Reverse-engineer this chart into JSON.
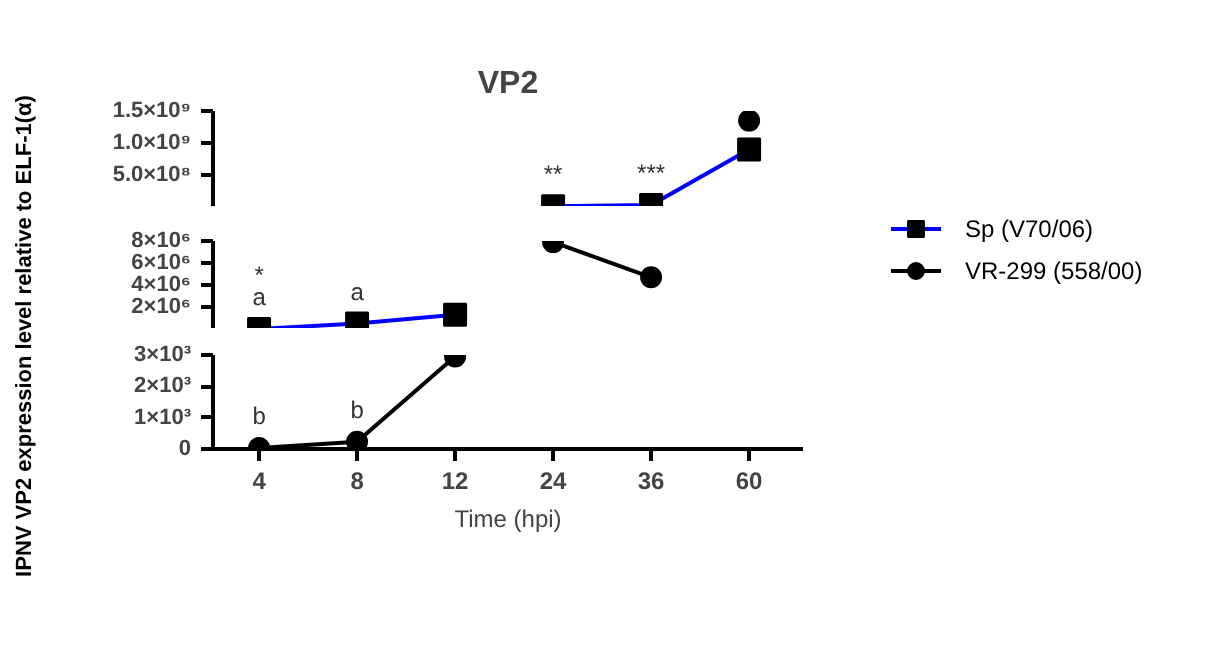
{
  "chart_data": [
    {
      "type": "line",
      "title": "VP2",
      "ylabel": "IPNV VP2 expression level relative to ELF-1(α)",
      "categories": [
        "4",
        "8",
        "12",
        "24",
        "36",
        "60"
      ],
      "series": [
        {
          "name": "Sp (V70/06)",
          "color": "#0000ff",
          "marker": "square",
          "values": [
            null,
            null,
            null,
            10000000.0,
            30000000.0,
            900000000.0
          ]
        },
        {
          "name": "VR-299 (558/00)",
          "color": "#000000",
          "marker": "circle",
          "values": [
            null,
            null,
            null,
            null,
            null,
            1350000000.0
          ]
        }
      ],
      "ylim": [
        0,
        1500000000.0
      ],
      "yticks": [
        {
          "value": 500000000.0,
          "label": "5.0×10⁸"
        },
        {
          "value": 1000000000.0,
          "label": "1.0×10⁹"
        },
        {
          "value": 1500000000.0,
          "label": "1.5×10⁹"
        }
      ],
      "annotations": [
        {
          "text": "**",
          "x": "24",
          "y": 10000000.0
        },
        {
          "text": "***",
          "x": "36",
          "y": 30000000.0
        }
      ],
      "tick_labels": "y",
      "grid": false,
      "legend": "right"
    },
    {
      "type": "line",
      "categories": [
        "4",
        "8",
        "12",
        "24",
        "36",
        "60"
      ],
      "series": [
        {
          "color": "#0000ff",
          "marker": "square",
          "values": [
            0,
            500000.0,
            1300000.0,
            null,
            null,
            null
          ]
        },
        {
          "color": "#000000",
          "marker": "circle",
          "values": [
            null,
            null,
            null,
            7900000.0,
            4700000.0,
            null
          ]
        }
      ],
      "ylim": [
        0,
        8000000.0
      ],
      "yticks": [
        {
          "value": 2000000.0,
          "label": "2×10⁶"
        },
        {
          "value": 4000000.0,
          "label": "4×10⁶"
        },
        {
          "value": 6000000.0,
          "label": "6×10⁶"
        },
        {
          "value": 8000000.0,
          "label": "8×10⁶"
        }
      ],
      "annotations": [
        {
          "text": "a",
          "x": "4",
          "y": 0
        },
        {
          "text": "*",
          "x": "4",
          "y": 0
        },
        {
          "text": "a",
          "x": "8",
          "y": 500000.0
        }
      ],
      "tick_labels": "y",
      "grid": false
    },
    {
      "type": "line",
      "xlabel": "Time (hpi)",
      "categories": [
        "4",
        "8",
        "12",
        "24",
        "36",
        "60"
      ],
      "series": [
        {
          "color": "#000000",
          "marker": "circle",
          "values": [
            30,
            230,
            2950,
            null,
            null,
            null
          ]
        }
      ],
      "ylim": [
        0,
        3000
      ],
      "yticks": [
        0,
        {
          "value": 1000,
          "label": "1×10³"
        },
        {
          "value": 2000,
          "label": "2×10³"
        },
        {
          "value": 3000,
          "label": "3×10³"
        }
      ],
      "annotations": [
        {
          "text": "b",
          "x": "4",
          "y": 30
        },
        {
          "text": "b",
          "x": "8",
          "y": 230
        }
      ],
      "grid": false
    }
  ]
}
